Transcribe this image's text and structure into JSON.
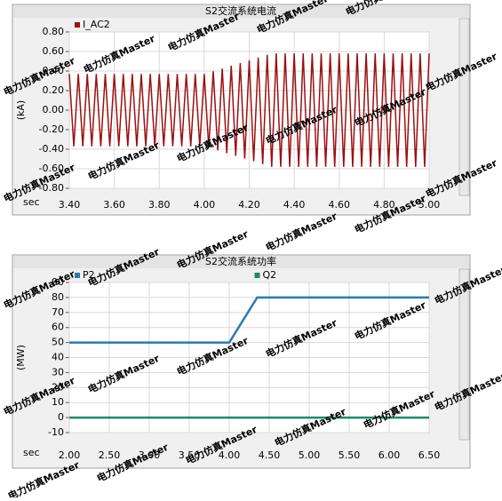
{
  "chart_data": [
    {
      "type": "line",
      "title": "S2交流系统电流",
      "x_label": "sec",
      "y_label": "(kA)",
      "xlim": [
        3.4,
        5.0
      ],
      "ylim": [
        -0.8,
        0.8
      ],
      "grid": true,
      "xticks": [
        {
          "value": 3.4,
          "label": "3.40"
        },
        {
          "value": 3.6,
          "label": "3.60"
        },
        {
          "value": 3.8,
          "label": "3.80"
        },
        {
          "value": 4.0,
          "label": "4.00"
        },
        {
          "value": 4.2,
          "label": "4.20"
        },
        {
          "value": 4.4,
          "label": "4.40"
        },
        {
          "value": 4.6,
          "label": "4.60"
        },
        {
          "value": 4.8,
          "label": "4.80"
        },
        {
          "value": 5.0,
          "label": "5.00"
        }
      ],
      "yticks": [
        {
          "value": 0.8,
          "label": "0.80"
        },
        {
          "value": 0.6,
          "label": "0.60"
        },
        {
          "value": 0.4,
          "label": "0.40"
        },
        {
          "value": 0.2,
          "label": "0.20"
        },
        {
          "value": 0,
          "label": "0.00"
        },
        {
          "value": -0.2,
          "label": "-0.20"
        },
        {
          "value": -0.4,
          "label": "-0.40"
        },
        {
          "value": -0.6,
          "label": "-0.60"
        },
        {
          "value": -0.8,
          "label": "-0.80"
        }
      ],
      "series": [
        {
          "name": "I_AC2",
          "color": "#9b1010",
          "x": [
            3.4,
            3.42,
            3.44,
            3.46,
            3.48,
            3.5,
            3.52,
            3.54,
            3.56,
            3.58,
            3.6,
            3.62,
            3.64,
            3.66,
            3.68,
            3.7,
            3.72,
            3.74,
            3.76,
            3.78,
            3.8,
            3.82,
            3.84,
            3.86,
            3.88,
            3.9,
            3.92,
            3.94,
            3.96,
            3.98,
            4.0,
            4.02,
            4.04,
            4.06,
            4.08,
            4.1,
            4.12,
            4.14,
            4.16,
            4.18,
            4.2,
            4.22,
            4.24,
            4.26,
            4.28,
            4.3,
            4.32,
            4.34,
            4.36,
            4.38,
            4.4,
            4.42,
            4.44,
            4.46,
            4.48,
            4.5,
            4.52,
            4.54,
            4.56,
            4.58,
            4.6,
            4.62,
            4.64,
            4.66,
            4.68,
            4.7,
            4.72,
            4.74,
            4.76,
            4.78,
            4.8,
            4.82,
            4.84,
            4.86,
            4.88,
            4.9,
            4.92,
            4.94,
            4.96,
            4.98,
            5.0
          ],
          "values": [
            0.37,
            -0.37,
            0.37,
            -0.37,
            0.37,
            -0.37,
            0.37,
            -0.37,
            0.37,
            -0.37,
            0.37,
            -0.37,
            0.37,
            -0.37,
            0.37,
            -0.37,
            0.37,
            -0.37,
            0.37,
            -0.37,
            0.37,
            -0.37,
            0.37,
            -0.37,
            0.37,
            -0.37,
            0.37,
            -0.37,
            0.37,
            -0.37,
            0.37,
            -0.384,
            0.398,
            -0.412,
            0.426,
            -0.44,
            0.454,
            -0.468,
            0.482,
            -0.496,
            0.51,
            -0.524,
            0.538,
            -0.552,
            0.566,
            -0.58,
            0.58,
            -0.58,
            0.58,
            -0.58,
            0.58,
            -0.58,
            0.58,
            -0.58,
            0.58,
            -0.58,
            0.58,
            -0.58,
            0.58,
            -0.58,
            0.58,
            -0.58,
            0.58,
            -0.58,
            0.58,
            -0.58,
            0.58,
            -0.58,
            0.58,
            -0.58,
            0.58,
            -0.58,
            0.58,
            -0.58,
            0.58,
            -0.58,
            0.58,
            -0.58,
            0.58,
            -0.58,
            0.58
          ]
        }
      ]
    },
    {
      "type": "line",
      "title": "S2交流系统功率",
      "x_label": "sec",
      "y_label": "(MW)",
      "xlim": [
        2.0,
        6.5
      ],
      "ylim": [
        -10,
        90
      ],
      "grid": true,
      "xticks": [
        {
          "value": 2.0,
          "label": "2.00"
        },
        {
          "value": 2.5,
          "label": "2.50"
        },
        {
          "value": 3.0,
          "label": "3.00"
        },
        {
          "value": 3.5,
          "label": "3.50"
        },
        {
          "value": 4.0,
          "label": "4.00"
        },
        {
          "value": 4.5,
          "label": "4.50"
        },
        {
          "value": 5.0,
          "label": "5.00"
        },
        {
          "value": 5.5,
          "label": "5.50"
        },
        {
          "value": 6.0,
          "label": "6.00"
        },
        {
          "value": 6.5,
          "label": "6.50"
        }
      ],
      "yticks": [
        90,
        80,
        70,
        60,
        50,
        40,
        30,
        20,
        10,
        0,
        -10
      ],
      "series": [
        {
          "name": "P2",
          "color": "#2a7ab0",
          "x": [
            2.0,
            4.0,
            4.35,
            6.5
          ],
          "values": [
            50,
            50,
            80,
            80
          ]
        },
        {
          "name": "Q2",
          "color": "#1a8a6a",
          "x": [
            2.0,
            6.5
          ],
          "values": [
            0,
            0
          ]
        }
      ]
    }
  ],
  "watermark": "电力仿真Master"
}
